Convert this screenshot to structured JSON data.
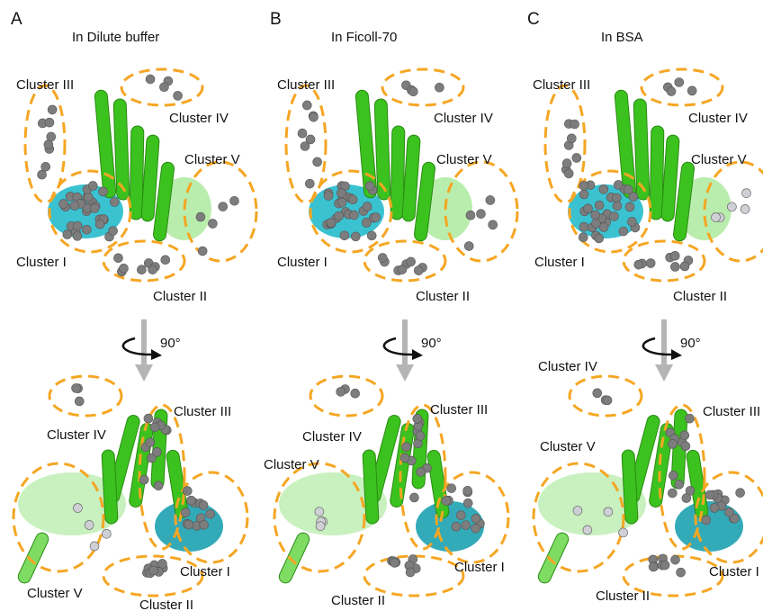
{
  "panels": [
    {
      "letter": "A",
      "title": "In Dilute buffer",
      "rotation": "90°",
      "labels": [
        "Cluster III",
        "Cluster IV",
        "Cluster V",
        "Cluster I",
        "Cluster II",
        "Cluster IV",
        "Cluster III",
        "Cluster I",
        "Cluster V",
        "Cluster II"
      ]
    },
    {
      "letter": "B",
      "title": "In Ficoll-70",
      "rotation": "90°",
      "labels": [
        "Cluster III",
        "Cluster IV",
        "Cluster V",
        "Cluster I",
        "Cluster II",
        "Cluster IV",
        "Cluster III",
        "Cluster V",
        "Cluster I",
        "Cluster II"
      ]
    },
    {
      "letter": "C",
      "title": "In BSA",
      "rotation": "90°",
      "labels": [
        "Cluster III",
        "Cluster IV",
        "Cluster V",
        "Cluster I",
        "Cluster II",
        "Cluster IV",
        "Cluster III",
        "Cluster V",
        "Cluster I",
        "Cluster II"
      ]
    }
  ]
}
